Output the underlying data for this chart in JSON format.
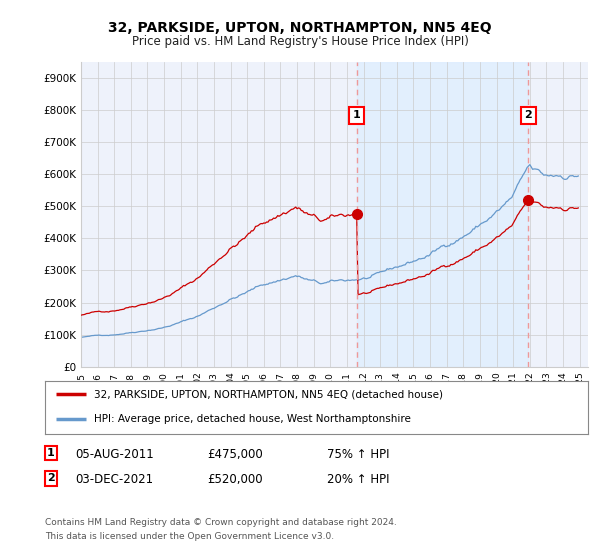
{
  "title": "32, PARKSIDE, UPTON, NORTHAMPTON, NN5 4EQ",
  "subtitle": "Price paid vs. HM Land Registry's House Price Index (HPI)",
  "ylabel_ticks": [
    "£0",
    "£100K",
    "£200K",
    "£300K",
    "£400K",
    "£500K",
    "£600K",
    "£700K",
    "£800K",
    "£900K"
  ],
  "ytick_values": [
    0,
    100000,
    200000,
    300000,
    400000,
    500000,
    600000,
    700000,
    800000,
    900000
  ],
  "ylim": [
    0,
    950000
  ],
  "xlim_start": 1995.0,
  "xlim_end": 2025.5,
  "sale1_x": 2011.58,
  "sale1_y": 475000,
  "sale2_x": 2021.92,
  "sale2_y": 520000,
  "sale1_label": "1",
  "sale2_label": "2",
  "sale1_date": "05-AUG-2011",
  "sale1_price": "£475,000",
  "sale1_hpi": "75% ↑ HPI",
  "sale2_date": "03-DEC-2021",
  "sale2_price": "£520,000",
  "sale2_hpi": "20% ↑ HPI",
  "legend_line1": "32, PARKSIDE, UPTON, NORTHAMPTON, NN5 4EQ (detached house)",
  "legend_line2": "HPI: Average price, detached house, West Northamptonshire",
  "footer1": "Contains HM Land Registry data © Crown copyright and database right 2024.",
  "footer2": "This data is licensed under the Open Government Licence v3.0.",
  "line_color_red": "#cc0000",
  "line_color_blue": "#6699cc",
  "vline_color": "#ee9999",
  "shade_color": "#ddeeff",
  "bg_color": "#eef2fb",
  "grid_color": "#cccccc"
}
